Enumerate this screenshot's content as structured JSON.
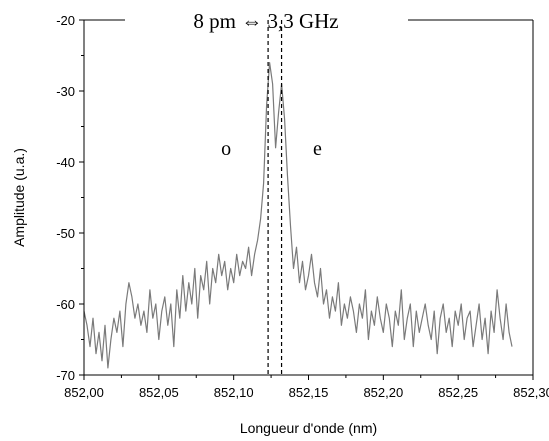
{
  "chart_data": {
    "type": "line",
    "title": "8 pm ⇔ 3,3 GHz",
    "xlabel": "Longueur d'onde (nm)",
    "ylabel": "Amplitude (u.a.)",
    "xlim": [
      852.0,
      852.3
    ],
    "ylim": [
      -70,
      -20
    ],
    "x_ticks": [
      "852,00",
      "852,05",
      "852,10",
      "852,15",
      "852,20",
      "852,25",
      "852,30"
    ],
    "y_ticks": [
      "-20",
      "-30",
      "-40",
      "-50",
      "-60",
      "-70"
    ],
    "x_tick_values": [
      852.0,
      852.05,
      852.1,
      852.15,
      852.2,
      852.25,
      852.3
    ],
    "y_tick_values": [
      -20,
      -30,
      -40,
      -50,
      -60,
      -70
    ],
    "grid": false,
    "line_color": "#7a7a7a",
    "annotations": [
      {
        "text": "o",
        "x": 852.095,
        "y": -39
      },
      {
        "text": "e",
        "x": 852.156,
        "y": -39
      }
    ],
    "reference_lines": [
      {
        "style": "dashed",
        "x": 852.123
      },
      {
        "style": "dashed",
        "x": 852.132
      }
    ],
    "series": [
      {
        "x": [
          852.0,
          852.002,
          852.004,
          852.006,
          852.008,
          852.01,
          852.012,
          852.014,
          852.016,
          852.018,
          852.02,
          852.022,
          852.024,
          852.026,
          852.028,
          852.03,
          852.032,
          852.034,
          852.036,
          852.038,
          852.04,
          852.042,
          852.044,
          852.046,
          852.048,
          852.05,
          852.052,
          852.054,
          852.056,
          852.058,
          852.06,
          852.062,
          852.064,
          852.066,
          852.068,
          852.07,
          852.072,
          852.074,
          852.076,
          852.078,
          852.08,
          852.082,
          852.084,
          852.086,
          852.088,
          852.09,
          852.092,
          852.094,
          852.096,
          852.098,
          852.1,
          852.102,
          852.104,
          852.106,
          852.108,
          852.11,
          852.112,
          852.114,
          852.116,
          852.118,
          852.12,
          852.122,
          852.124,
          852.126,
          852.128,
          852.13,
          852.132,
          852.134,
          852.136,
          852.138,
          852.14,
          852.142,
          852.144,
          852.146,
          852.148,
          852.15,
          852.152,
          852.154,
          852.156,
          852.158,
          852.16,
          852.162,
          852.164,
          852.166,
          852.168,
          852.17,
          852.172,
          852.174,
          852.176,
          852.178,
          852.18,
          852.182,
          852.184,
          852.186,
          852.188,
          852.19,
          852.192,
          852.194,
          852.196,
          852.198,
          852.2,
          852.202,
          852.204,
          852.206,
          852.208,
          852.21,
          852.212,
          852.214,
          852.216,
          852.218,
          852.22,
          852.222,
          852.224,
          852.226,
          852.228,
          852.23,
          852.232,
          852.234,
          852.236,
          852.238,
          852.24,
          852.242,
          852.244,
          852.246,
          852.248,
          852.25,
          852.252,
          852.254,
          852.256,
          852.258,
          852.26,
          852.262,
          852.264,
          852.266,
          852.268,
          852.27,
          852.272,
          852.274,
          852.276,
          852.278,
          852.28,
          852.282,
          852.284,
          852.286
        ],
        "y": [
          -61,
          -63,
          -66,
          -62,
          -67,
          -64,
          -68,
          -63,
          -69,
          -65,
          -62,
          -64,
          -61,
          -66,
          -60,
          -57,
          -59,
          -62,
          -60,
          -63,
          -61,
          -64,
          -58,
          -62,
          -60,
          -65,
          -61,
          -59,
          -63,
          -60,
          -66,
          -58,
          -62,
          -56,
          -61,
          -57,
          -60,
          -55,
          -62,
          -56,
          -58,
          -54,
          -60,
          -55,
          -57,
          -53,
          -56,
          -54,
          -58,
          -55,
          -57,
          -53,
          -56,
          -54,
          -55,
          -52,
          -56,
          -53,
          -51,
          -48,
          -43,
          -32,
          -26,
          -29,
          -38,
          -33,
          -29,
          -34,
          -42,
          -49,
          -55,
          -52,
          -57,
          -54,
          -58,
          -56,
          -53,
          -57,
          -59,
          -55,
          -60,
          -58,
          -62,
          -59,
          -61,
          -57,
          -63,
          -60,
          -62,
          -59,
          -61,
          -64,
          -60,
          -62,
          -58,
          -65,
          -61,
          -63,
          -59,
          -62,
          -64,
          -60,
          -62,
          -66,
          -61,
          -63,
          -58,
          -65,
          -62,
          -60,
          -66,
          -61,
          -64,
          -62,
          -60,
          -63,
          -65,
          -61,
          -67,
          -62,
          -60,
          -64,
          -62,
          -66,
          -61,
          -63,
          -60,
          -65,
          -62,
          -61,
          -66,
          -63,
          -60,
          -65,
          -62,
          -67,
          -61,
          -64,
          -58,
          -62,
          -65,
          -60,
          -64,
          -66
        ]
      }
    ]
  }
}
